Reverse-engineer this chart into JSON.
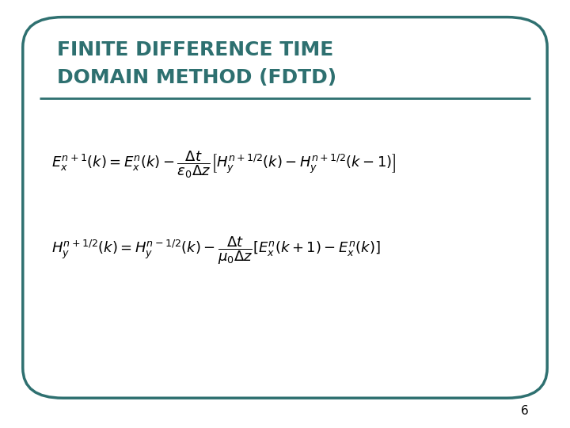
{
  "title_line1": "FINITE DIFFERENCE TIME",
  "title_line2": "DOMAIN METHOD (FDTD)",
  "title_color": "#2E7070",
  "bg_color": "#FFFFFF",
  "border_color": "#2E7070",
  "page_number": "6",
  "eq_color": "#000000",
  "title_fontsize": 18,
  "eq_fontsize": 13,
  "page_num_fontsize": 11
}
